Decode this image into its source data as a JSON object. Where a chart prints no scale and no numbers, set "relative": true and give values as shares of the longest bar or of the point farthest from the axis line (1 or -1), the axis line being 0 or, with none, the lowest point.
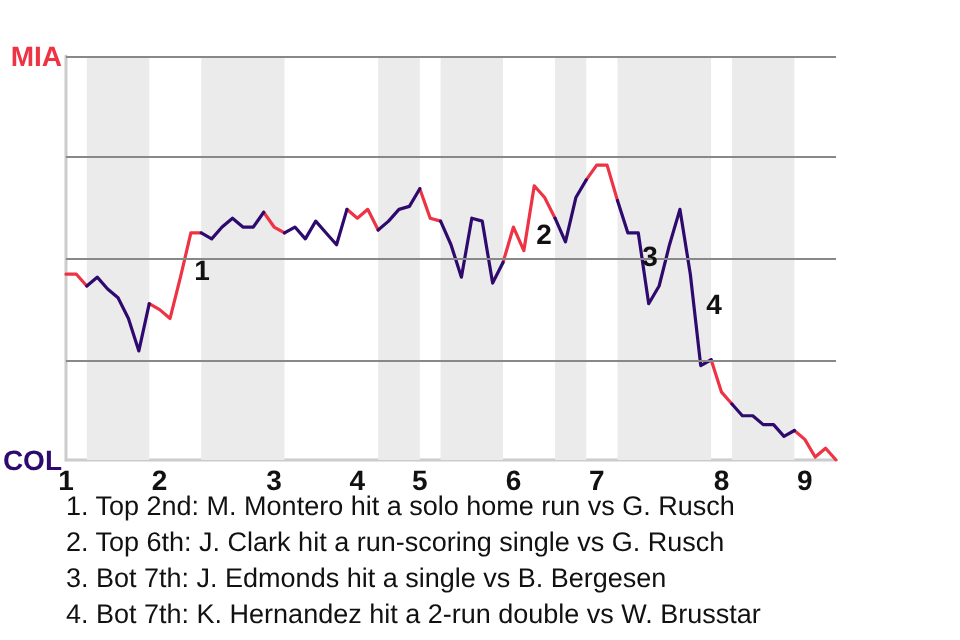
{
  "chart_data": {
    "type": "line",
    "relative": true,
    "categories": [
      "1",
      null,
      null,
      null,
      null,
      null,
      null,
      null,
      null,
      "2",
      null,
      null,
      null,
      null,
      null,
      null,
      null,
      null,
      null,
      null,
      "3",
      null,
      null,
      null,
      null,
      null,
      null,
      null,
      "4",
      null,
      null,
      null,
      null,
      null,
      "5",
      null,
      null,
      null,
      null,
      null,
      null,
      null,
      null,
      "6",
      null,
      null,
      null,
      null,
      null,
      null,
      null,
      "7",
      null,
      null,
      null,
      null,
      null,
      null,
      null,
      null,
      null,
      null,
      null,
      "8",
      null,
      null,
      null,
      null,
      null,
      null,
      null,
      "9",
      null,
      null,
      null
    ],
    "series": [
      {
        "color": "#ee3344",
        "values": [
          0.63,
          0.63,
          0.59,
          null,
          null,
          null,
          null,
          null,
          0.53,
          0.51,
          0.48,
          0.62,
          0.77,
          0.77,
          null,
          null,
          null,
          null,
          null,
          0.84,
          0.79,
          0.77,
          null,
          null,
          null,
          null,
          null,
          0.85,
          0.82,
          0.85,
          0.78,
          null,
          null,
          null,
          0.92,
          0.82,
          0.81,
          null,
          null,
          null,
          null,
          null,
          0.67,
          0.79,
          0.71,
          0.93,
          0.89,
          0.82,
          null,
          null,
          0.95,
          1,
          1,
          0.88,
          null,
          null,
          null,
          null,
          null,
          null,
          null,
          null,
          0.34,
          0.23,
          0.19,
          null,
          null,
          null,
          null,
          null,
          0.1,
          0.07,
          0.01,
          0.04,
          0
        ]
      },
      {
        "color": "#2e0a6e",
        "values": [
          null,
          null,
          0.59,
          0.62,
          0.58,
          0.55,
          0.48,
          0.37,
          0.53,
          null,
          null,
          null,
          null,
          0.77,
          0.75,
          0.79,
          0.82,
          0.79,
          0.79,
          0.84,
          null,
          0.77,
          0.79,
          0.75,
          0.81,
          0.77,
          0.73,
          0.85,
          null,
          null,
          0.78,
          0.81,
          0.85,
          0.86,
          0.92,
          null,
          0.81,
          0.73,
          0.62,
          0.82,
          0.81,
          0.6,
          0.67,
          null,
          null,
          null,
          null,
          0.82,
          0.74,
          0.89,
          0.95,
          null,
          null,
          0.88,
          0.77,
          0.77,
          0.53,
          0.59,
          0.73,
          0.85,
          0.63,
          0.32,
          0.34,
          null,
          0.19,
          0.15,
          0.15,
          0.12,
          0.12,
          0.08,
          0.1,
          null,
          null,
          null,
          null
        ]
      }
    ],
    "ref_lines": [
      {
        "axis": "y",
        "value": 0.34,
        "color": "#888888"
      },
      {
        "axis": "y",
        "value": 0.68,
        "color": "#888888"
      },
      {
        "axis": "y",
        "value": 1.03,
        "color": "#888888"
      },
      {
        "axis": "y",
        "value": 1.37,
        "color": "#888888"
      }
    ],
    "annotations": [
      "MIA",
      "COL",
      "1",
      "2",
      "3",
      "4",
      "1. Top 2nd: M. Montero hit a solo home run vs G. Rusch",
      "2. Top 6th: J. Clark hit a run-scoring single vs G. Rusch",
      "3. Bot 7th: J. Edmonds hit a single vs B. Bergesen",
      "4. Bot 7th: K. Hernandez hit a 2-run double vs W. Brusstar"
    ]
  }
}
